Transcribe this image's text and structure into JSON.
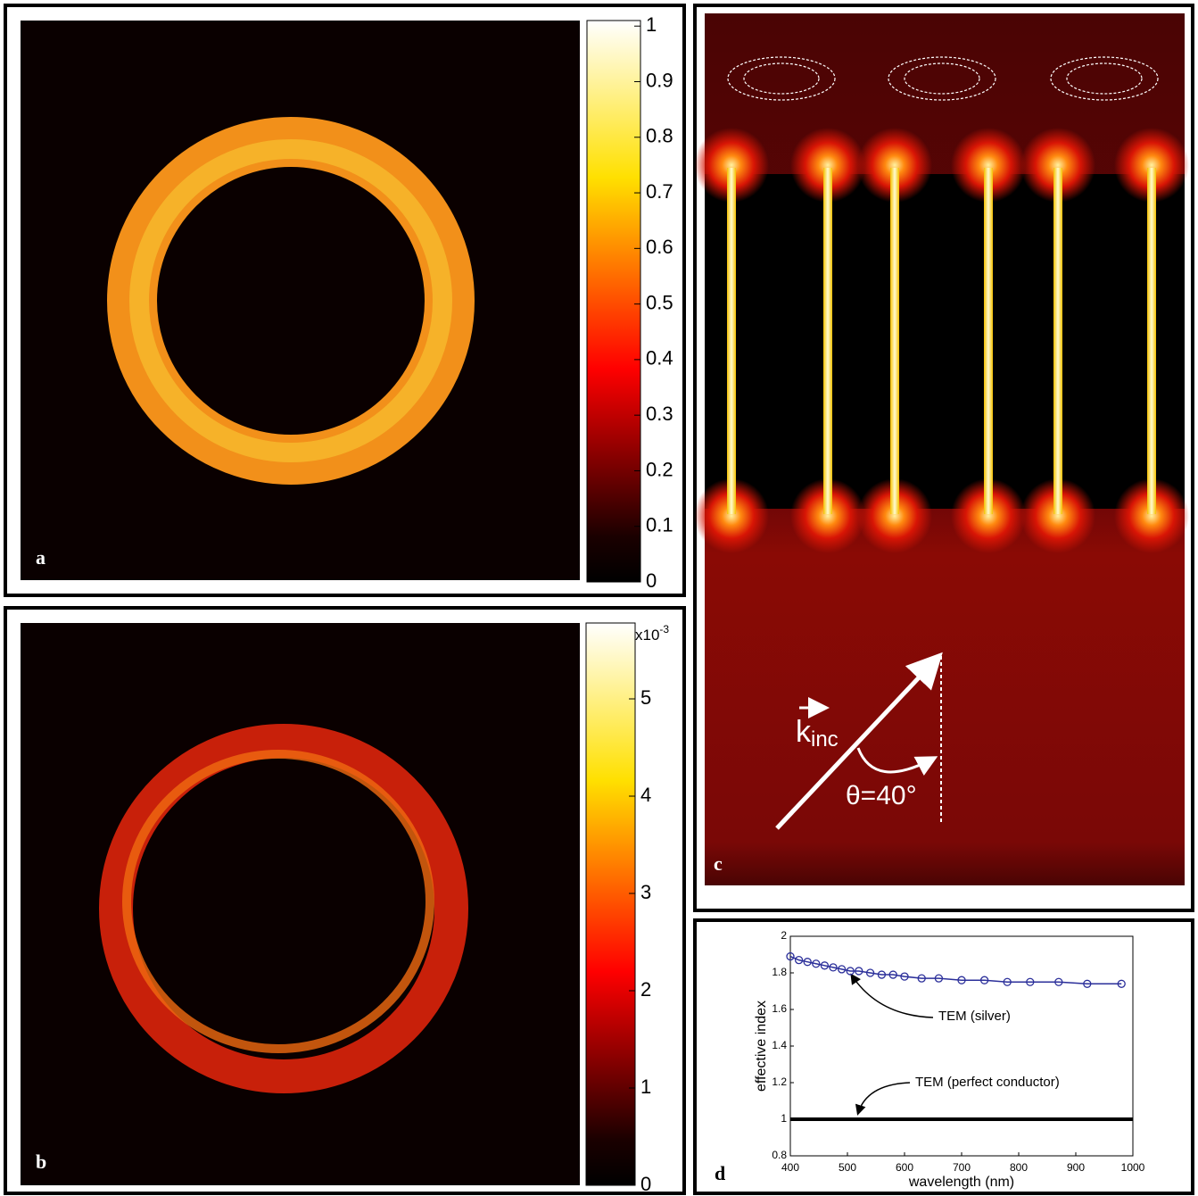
{
  "chart_data": [
    {
      "type": "heatmap",
      "panel": "a",
      "colorbar": {
        "ylim": [
          0,
          1.01
        ],
        "yticks": [
          0,
          0.1,
          0.2,
          0.3,
          0.4,
          0.5,
          0.6,
          0.7,
          0.8,
          0.9,
          1
        ]
      }
    },
    {
      "type": "heatmap",
      "panel": "b",
      "colorbar": {
        "ylim": [
          0,
          5.78
        ],
        "yticks": [
          0,
          1,
          2,
          3,
          4,
          5
        ],
        "scale_base": "x10",
        "scale_exponent": "-3"
      }
    },
    {
      "type": "field-map",
      "panel": "c",
      "wavevector": "k",
      "wavevector_subscript": "inc",
      "angle_label": "θ=40°"
    },
    {
      "type": "line",
      "panel": "d",
      "xlabel": "wavelength (nm)",
      "ylabel": "effective index",
      "xlim": [
        400,
        1000
      ],
      "xticks": [
        400,
        500,
        600,
        700,
        800,
        900,
        1000
      ],
      "ylim": [
        0.8,
        2
      ],
      "yticks": [
        0.8,
        1,
        1.2,
        1.4,
        1.6,
        1.8,
        2
      ],
      "series": [
        {
          "color": "#2b2f9a",
          "marker": "circle",
          "x": [
            400,
            415,
            430,
            445,
            460,
            475,
            490,
            505,
            520,
            540,
            560,
            580,
            600,
            630,
            660,
            700,
            740,
            780,
            820,
            870,
            920,
            980
          ],
          "values": [
            1.89,
            1.87,
            1.86,
            1.85,
            1.84,
            1.83,
            1.82,
            1.81,
            1.81,
            1.8,
            1.79,
            1.79,
            1.78,
            1.77,
            1.77,
            1.76,
            1.76,
            1.75,
            1.75,
            1.75,
            1.74,
            1.74
          ]
        },
        {
          "color": "#000000",
          "marker": "none",
          "x": [
            400,
            1000
          ],
          "values": [
            1,
            1
          ]
        }
      ],
      "annotations": [
        "TEM (silver)",
        "TEM (perfect conductor)"
      ]
    }
  ]
}
